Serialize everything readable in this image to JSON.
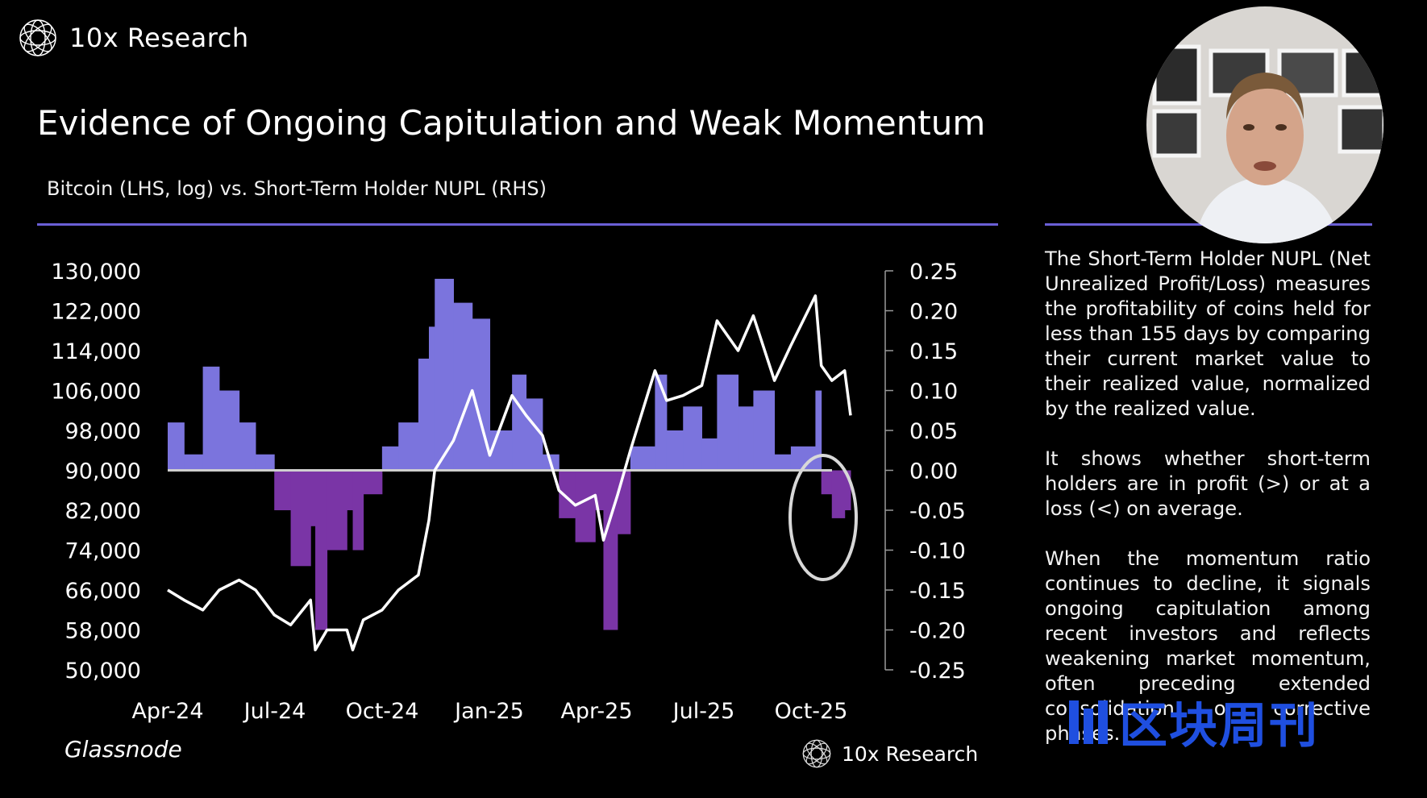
{
  "brand": {
    "name": "10x Research",
    "logo_icon": "globe-wireframe-icon"
  },
  "title": "Evidence of Ongoing Capitulation and Weak Momentum",
  "subtitle": "Bitcoin (LHS, log) vs. Short-Term Holder NUPL (RHS)",
  "source": "Glassnode",
  "footer_brand": "10x Research",
  "side_paragraphs": [
    "The Short-Term Holder NUPL (Net Unrealized Profit/Loss) measures the profitability of coins held for less than 155 days by comparing their current market value to their realized value, normalized by the realized value.",
    "It shows whether short-term holders are in profit (>) or at a loss (<) on average.",
    "When the momentum ratio continues to decline, it signals ongoing capitulation among recent investors and reflects weakening market momentum, often preceding extended consolidation or corrective phases."
  ],
  "watermark": "区块周刊",
  "colors": {
    "accent": "#6a5fd6",
    "nupl_positive": "#7b74dd",
    "nupl_negative": "#7a35a6",
    "btc_line": "#ffffff",
    "watermark": "#1f4fe0"
  },
  "chart_data": {
    "type": "line",
    "categories": [
      "Apr-24",
      "Jul-24",
      "Oct-24",
      "Jan-25",
      "Apr-25",
      "Jul-25",
      "Oct-25"
    ],
    "left_axis": {
      "ticks": [
        "130,000",
        "122,000",
        "114,000",
        "106,000",
        "98,000",
        "90,000",
        "82,000",
        "74,000",
        "66,000",
        "58,000",
        "50,000"
      ],
      "ylim": [
        50000,
        130000
      ]
    },
    "right_axis": {
      "ticks": [
        "0.25",
        "0.20",
        "0.15",
        "0.10",
        "0.05",
        "0.00",
        "-0.05",
        "-0.10",
        "-0.15",
        "-0.20",
        "-0.25"
      ],
      "ylim": [
        -0.25,
        0.25
      ]
    },
    "series": [
      {
        "name": "Bitcoin",
        "axis": "left",
        "x": [
          "2024-04-01",
          "2024-04-15",
          "2024-05-01",
          "2024-05-15",
          "2024-06-01",
          "2024-06-15",
          "2024-07-01",
          "2024-07-15",
          "2024-08-01",
          "2024-08-05",
          "2024-08-15",
          "2024-09-01",
          "2024-09-06",
          "2024-09-15",
          "2024-10-01",
          "2024-10-15",
          "2024-11-01",
          "2024-11-10",
          "2024-11-15",
          "2024-12-01",
          "2024-12-17",
          "2025-01-01",
          "2025-01-20",
          "2025-02-01",
          "2025-02-15",
          "2025-03-01",
          "2025-03-15",
          "2025-04-01",
          "2025-04-08",
          "2025-04-20",
          "2025-05-01",
          "2025-05-22",
          "2025-06-01",
          "2025-06-15",
          "2025-07-01",
          "2025-07-14",
          "2025-08-01",
          "2025-08-14",
          "2025-09-01",
          "2025-09-15",
          "2025-10-06",
          "2025-10-11",
          "2025-10-20",
          "2025-10-31",
          "2025-11-05"
        ],
        "values": [
          66000,
          64000,
          62000,
          66000,
          68000,
          66000,
          61000,
          59000,
          64000,
          54000,
          58000,
          58000,
          54000,
          60000,
          62000,
          66000,
          69000,
          80000,
          90000,
          96000,
          106000,
          93000,
          105000,
          101000,
          97000,
          86000,
          83000,
          85000,
          76000,
          85000,
          94000,
          110000,
          104000,
          105000,
          107000,
          120000,
          114000,
          121000,
          108000,
          115000,
          125000,
          111000,
          108000,
          110000,
          101000
        ]
      },
      {
        "name": "Short-Term Holder NUPL",
        "axis": "right",
        "x": [
          "2024-04-01",
          "2024-04-15",
          "2024-05-01",
          "2024-05-15",
          "2024-06-01",
          "2024-06-15",
          "2024-07-01",
          "2024-07-15",
          "2024-08-01",
          "2024-08-05",
          "2024-08-15",
          "2024-09-01",
          "2024-09-06",
          "2024-09-15",
          "2024-10-01",
          "2024-10-15",
          "2024-11-01",
          "2024-11-10",
          "2024-11-15",
          "2024-12-01",
          "2024-12-17",
          "2025-01-01",
          "2025-01-20",
          "2025-02-01",
          "2025-02-15",
          "2025-03-01",
          "2025-03-15",
          "2025-04-01",
          "2025-04-08",
          "2025-04-20",
          "2025-05-01",
          "2025-05-22",
          "2025-06-01",
          "2025-06-15",
          "2025-07-01",
          "2025-07-14",
          "2025-08-01",
          "2025-08-14",
          "2025-09-01",
          "2025-09-15",
          "2025-10-06",
          "2025-10-11",
          "2025-10-20",
          "2025-10-31",
          "2025-11-05"
        ],
        "values": [
          0.06,
          0.02,
          0.13,
          0.1,
          0.06,
          0.02,
          -0.05,
          -0.12,
          -0.07,
          -0.2,
          -0.1,
          -0.05,
          -0.1,
          -0.03,
          0.03,
          0.06,
          0.14,
          0.18,
          0.24,
          0.21,
          0.19,
          0.05,
          0.12,
          0.09,
          0.02,
          -0.06,
          -0.09,
          -0.05,
          -0.2,
          -0.08,
          0.03,
          0.12,
          0.05,
          0.08,
          0.04,
          0.12,
          0.08,
          0.1,
          0.02,
          0.03,
          0.1,
          -0.03,
          -0.06,
          -0.05,
          -0.11
        ]
      }
    ]
  }
}
